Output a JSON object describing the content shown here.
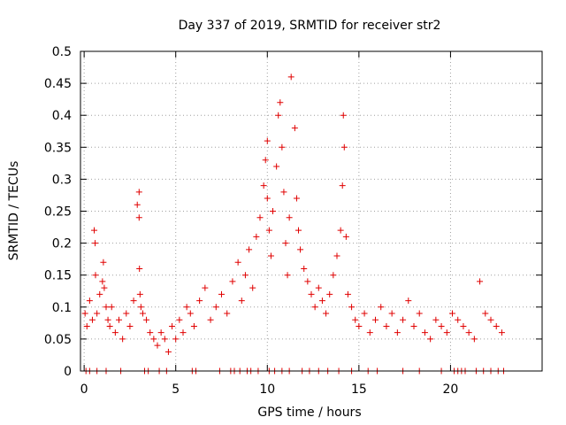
{
  "chart_data": {
    "type": "scatter",
    "title": "Day 337 of 2019, SRMTID for receiver str2",
    "xlabel": "GPS time / hours",
    "ylabel": "SRMTID / TECUs",
    "xlim": [
      -0.2,
      25
    ],
    "ylim": [
      0,
      0.5
    ],
    "xticks": [
      0,
      5,
      10,
      15,
      20
    ],
    "yticks": [
      0,
      0.05,
      0.1,
      0.15,
      0.2,
      0.25,
      0.3,
      0.35,
      0.4,
      0.45,
      0.5
    ],
    "xtick_labels": [
      "0",
      "5",
      "10",
      "15",
      "20"
    ],
    "ytick_labels": [
      "0",
      "0.05",
      "0.1",
      "0.15",
      "0.2",
      "0.25",
      "0.3",
      "0.35",
      "0.4",
      "0.45",
      "0.5"
    ],
    "grid": true,
    "marker": "+",
    "color": "#e00000",
    "series": [
      {
        "name": "SRMTID",
        "x": [
          0.05,
          0.15,
          0.3,
          0.45,
          0.55,
          0.6,
          0.62,
          0.7,
          0.85,
          1.0,
          1.05,
          1.1,
          1.2,
          1.3,
          1.4,
          1.5,
          1.7,
          1.9,
          2.1,
          2.3,
          2.5,
          2.7,
          2.9,
          3.0,
          3.0,
          3.02,
          3.05,
          3.1,
          3.2,
          3.4,
          3.6,
          3.8,
          4.0,
          4.2,
          4.4,
          4.6,
          4.8,
          5.0,
          5.2,
          5.4,
          5.6,
          5.8,
          6.0,
          6.3,
          6.6,
          6.9,
          7.2,
          7.5,
          7.8,
          8.1,
          8.4,
          8.6,
          8.8,
          9.0,
          9.2,
          9.4,
          9.6,
          9.8,
          9.9,
          10.0,
          10.0,
          10.1,
          10.2,
          10.3,
          10.5,
          10.6,
          10.7,
          10.8,
          10.9,
          11.0,
          11.1,
          11.2,
          11.3,
          11.5,
          11.6,
          11.7,
          11.8,
          12.0,
          12.2,
          12.4,
          12.6,
          12.8,
          13.0,
          13.2,
          13.4,
          13.6,
          13.8,
          14.0,
          14.1,
          14.15,
          14.2,
          14.3,
          14.4,
          14.6,
          14.8,
          15.0,
          15.3,
          15.6,
          15.9,
          16.2,
          16.5,
          16.8,
          17.1,
          17.4,
          17.7,
          18.0,
          18.3,
          18.6,
          18.9,
          19.2,
          19.5,
          19.8,
          20.1,
          20.4,
          20.7,
          21.0,
          21.3,
          21.6,
          21.9,
          22.2,
          22.5,
          22.8
        ],
        "y": [
          0.09,
          0.07,
          0.11,
          0.08,
          0.22,
          0.2,
          0.15,
          0.09,
          0.12,
          0.14,
          0.17,
          0.13,
          0.1,
          0.08,
          0.07,
          0.1,
          0.06,
          0.08,
          0.05,
          0.09,
          0.07,
          0.11,
          0.26,
          0.28,
          0.24,
          0.16,
          0.12,
          0.1,
          0.09,
          0.08,
          0.06,
          0.05,
          0.04,
          0.06,
          0.05,
          0.03,
          0.07,
          0.05,
          0.08,
          0.06,
          0.1,
          0.09,
          0.07,
          0.11,
          0.13,
          0.08,
          0.1,
          0.12,
          0.09,
          0.14,
          0.17,
          0.11,
          0.15,
          0.19,
          0.13,
          0.21,
          0.24,
          0.29,
          0.33,
          0.36,
          0.27,
          0.22,
          0.18,
          0.25,
          0.32,
          0.4,
          0.42,
          0.35,
          0.28,
          0.2,
          0.15,
          0.24,
          0.46,
          0.38,
          0.27,
          0.22,
          0.19,
          0.16,
          0.14,
          0.12,
          0.1,
          0.13,
          0.11,
          0.09,
          0.12,
          0.15,
          0.18,
          0.22,
          0.29,
          0.4,
          0.35,
          0.21,
          0.12,
          0.1,
          0.08,
          0.07,
          0.09,
          0.06,
          0.08,
          0.1,
          0.07,
          0.09,
          0.06,
          0.08,
          0.11,
          0.07,
          0.09,
          0.06,
          0.05,
          0.08,
          0.07,
          0.06,
          0.09,
          0.08,
          0.07,
          0.06,
          0.05,
          0.14,
          0.09,
          0.08,
          0.07,
          0.06
        ]
      }
    ],
    "zero_x": [
      0.1,
      0.3,
      0.7,
      1.2,
      2.0,
      3.3,
      3.5,
      4.1,
      4.5,
      5.9,
      6.1,
      7.4,
      8.0,
      8.2,
      8.5,
      8.9,
      9.1,
      9.5,
      10.1,
      10.4,
      10.8,
      11.2,
      11.9,
      12.3,
      12.8,
      13.3,
      13.9,
      14.6,
      15.5,
      16.0,
      17.4,
      18.3,
      19.5,
      20.2,
      20.4,
      20.6,
      20.8,
      21.4,
      21.8,
      22.2,
      22.6,
      22.9
    ]
  }
}
